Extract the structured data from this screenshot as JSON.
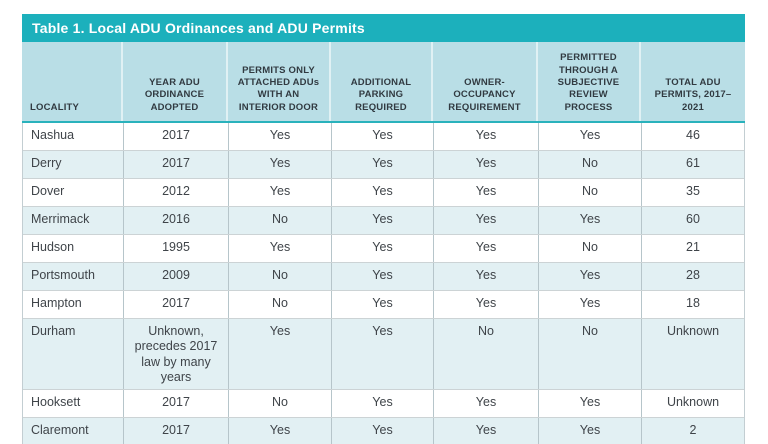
{
  "table": {
    "title": "Table 1. Local ADU Ordinances and ADU Permits",
    "columns": [
      "LOCALITY",
      "YEAR ADU ORDINANCE ADOPTED",
      "PERMITS ONLY ATTACHED ADUs WITH AN INTERIOR DOOR",
      "ADDITIONAL PARKING REQUIRED",
      "OWNER-OCCUPANCY REQUIREMENT",
      "PERMITTED THROUGH A SUBJECTIVE REVIEW PROCESS",
      "TOTAL ADU PERMITS, 2017–2021"
    ],
    "rows": [
      {
        "locality": "Nashua",
        "year": "2017",
        "interior_door": "Yes",
        "parking": "Yes",
        "owner_occupancy": "Yes",
        "subjective_review": "Yes",
        "total_permits": "46"
      },
      {
        "locality": "Derry",
        "year": "2017",
        "interior_door": "Yes",
        "parking": "Yes",
        "owner_occupancy": "Yes",
        "subjective_review": "No",
        "total_permits": "61"
      },
      {
        "locality": "Dover",
        "year": "2012",
        "interior_door": "Yes",
        "parking": "Yes",
        "owner_occupancy": "Yes",
        "subjective_review": "No",
        "total_permits": "35"
      },
      {
        "locality": "Merrimack",
        "year": "2016",
        "interior_door": "No",
        "parking": "Yes",
        "owner_occupancy": "Yes",
        "subjective_review": "Yes",
        "total_permits": "60"
      },
      {
        "locality": "Hudson",
        "year": "1995",
        "interior_door": "Yes",
        "parking": "Yes",
        "owner_occupancy": "Yes",
        "subjective_review": "No",
        "total_permits": "21"
      },
      {
        "locality": "Portsmouth",
        "year": "2009",
        "interior_door": "No",
        "parking": "Yes",
        "owner_occupancy": "Yes",
        "subjective_review": "Yes",
        "total_permits": "28"
      },
      {
        "locality": "Hampton",
        "year": "2017",
        "interior_door": "No",
        "parking": "Yes",
        "owner_occupancy": "Yes",
        "subjective_review": "Yes",
        "total_permits": "18"
      },
      {
        "locality": "Durham",
        "year": "Unknown, precedes 2017 law by many years",
        "interior_door": "Yes",
        "parking": "Yes",
        "owner_occupancy": "No",
        "subjective_review": "No",
        "total_permits": "Unknown"
      },
      {
        "locality": "Hooksett",
        "year": "2017",
        "interior_door": "No",
        "parking": "Yes",
        "owner_occupancy": "Yes",
        "subjective_review": "Yes",
        "total_permits": "Unknown"
      },
      {
        "locality": "Claremont",
        "year": "2017",
        "interior_door": "Yes",
        "parking": "Yes",
        "owner_occupancy": "Yes",
        "subjective_review": "Yes",
        "total_permits": "2"
      }
    ],
    "colors": {
      "teal": "#1cb0bc",
      "header_background": "#b9dee6",
      "alt_row_background": "#e2f0f3",
      "header_text": "#313a41",
      "body_text": "#3f4449"
    }
  }
}
